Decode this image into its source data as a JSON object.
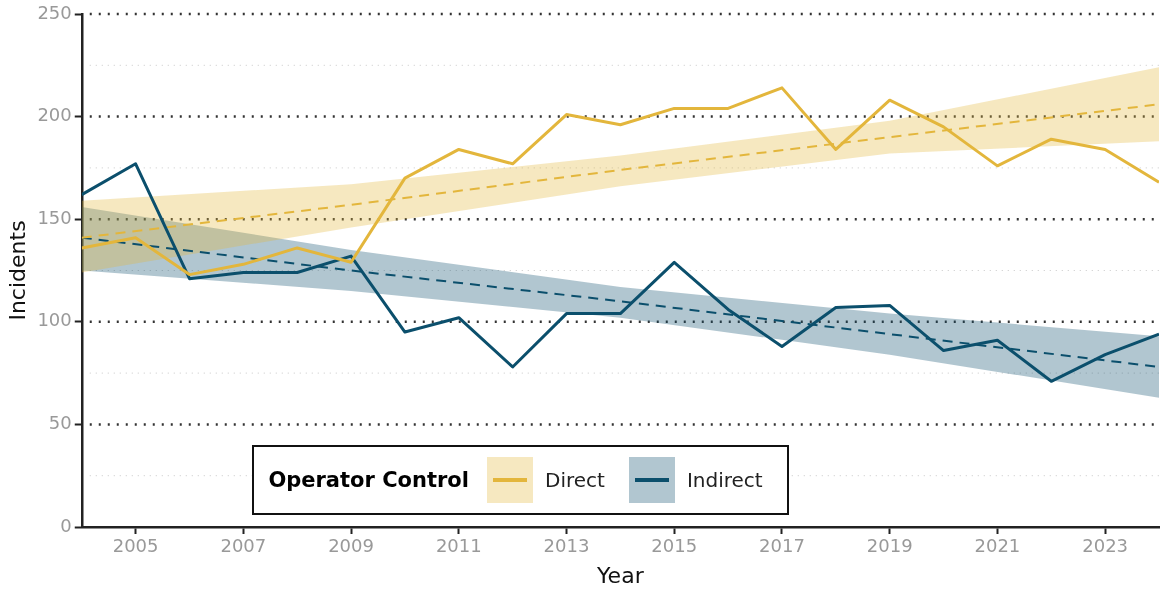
{
  "chart_data": {
    "type": "line",
    "xlabel": "Year",
    "ylabel": "Incidents",
    "legend_title": "Operator Control",
    "legend": "bottom",
    "grid": "y",
    "marker": "none",
    "xlim": [
      2004,
      2024
    ],
    "xticks": [
      2005,
      2007,
      2009,
      2011,
      2013,
      2015,
      2017,
      2019,
      2021,
      2023
    ],
    "ylim": [
      0,
      250
    ],
    "yticks": [
      0,
      {
        "value": 25,
        "label": null
      },
      50,
      {
        "value": 75,
        "label": null
      },
      100,
      {
        "value": 125,
        "label": null
      },
      150,
      {
        "value": 175,
        "label": null
      },
      200,
      {
        "value": 225,
        "label": null
      },
      250
    ],
    "series": [
      {
        "name": "Direct",
        "color": "#e3b63c",
        "line_style": "solid",
        "x": [
          2004,
          2005,
          2006,
          2007,
          2008,
          2009,
          2010,
          2011,
          2012,
          2013,
          2014,
          2015,
          2016,
          2017,
          2018,
          2019,
          2020,
          2021,
          2022,
          2023,
          2024
        ],
        "values": [
          136,
          141,
          123,
          128,
          136,
          129,
          170,
          184,
          177,
          201,
          196,
          204,
          204,
          214,
          184,
          208,
          195,
          176,
          189,
          184,
          168
        ]
      },
      {
        "name": "Indirect",
        "color": "#0b4f6c",
        "line_style": "solid",
        "x": [
          2004,
          2005,
          2006,
          2007,
          2008,
          2009,
          2010,
          2011,
          2012,
          2013,
          2014,
          2015,
          2016,
          2017,
          2018,
          2019,
          2020,
          2021,
          2022,
          2023,
          2024
        ],
        "values": [
          162,
          177,
          121,
          124,
          124,
          132,
          95,
          102,
          78,
          104,
          104,
          129,
          106,
          88,
          107,
          108,
          86,
          91,
          71,
          84,
          94
        ]
      },
      {
        "type": "line",
        "color": "#e3b63c",
        "line_style": "dashed",
        "x": [
          2004,
          2009,
          2014,
          2019,
          2024
        ],
        "values": [
          141,
          157,
          174,
          190,
          206
        ],
        "lower": [
          124,
          146,
          166,
          182,
          188
        ],
        "upper": [
          159,
          167,
          181,
          198,
          224
        ]
      },
      {
        "type": "line",
        "color": "#0b4f6c",
        "line_style": "dashed",
        "x": [
          2004,
          2009,
          2014,
          2019,
          2024
        ],
        "values": [
          141,
          125,
          110,
          94,
          78
        ],
        "lower": [
          125,
          115,
          102,
          84,
          63
        ],
        "upper": [
          156,
          135,
          117,
          104,
          93
        ]
      }
    ]
  }
}
